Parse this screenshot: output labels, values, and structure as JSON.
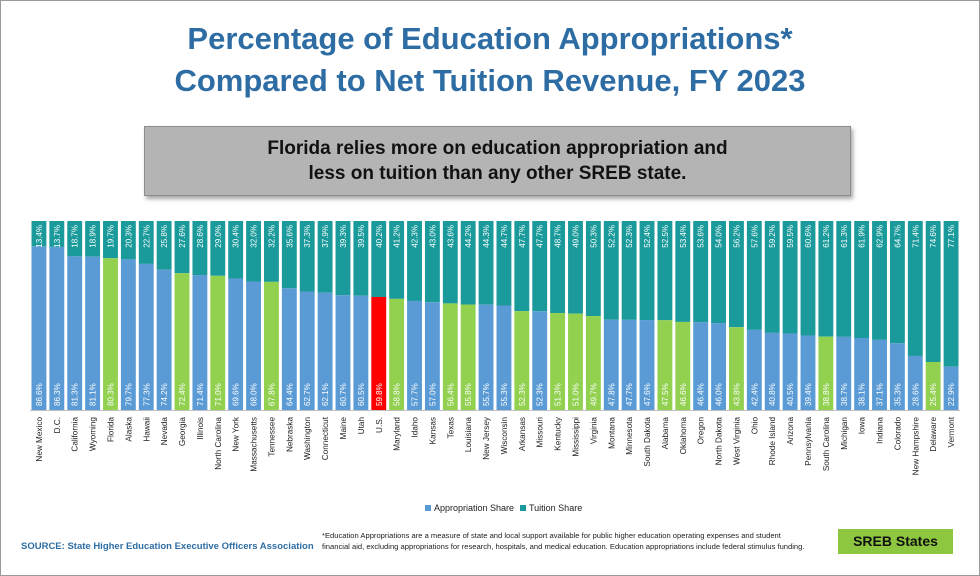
{
  "title_line1": "Percentage of Education Appropriations*",
  "title_line2": "Compared to Net Tuition Revenue, FY 2023",
  "callout_line1": "Florida relies more on education appropriation and",
  "callout_line2": "less on tuition than any other SREB state.",
  "legend": {
    "appropriation": "Appropriation Share",
    "tuition": "Tuition Share"
  },
  "source": "SOURCE: State Higher Education Executive Officers Association",
  "footnote_line1": "*Education Appropriations are a measure of state and local support available for public higher education operating expenses and student",
  "footnote_line2": "financial aid, excluding appropriations for research, hospitals, and medical education. Education appropriations include federal stimulus funding.",
  "sreb_label": "SREB States",
  "colors": {
    "appropriation": "#5b9bd5",
    "tuition": "#1a9a9a",
    "sreb": "#92d050",
    "us": "#ff0000"
  },
  "chart_data": {
    "type": "bar",
    "stacked": true,
    "ylim": [
      0,
      100
    ],
    "categories": [
      "New Mexico",
      "D.C.",
      "California",
      "Wyoming",
      "Florida",
      "Alaska",
      "Hawaii",
      "Nevada",
      "Georgia",
      "Illinois",
      "North Carolina",
      "New York",
      "Massachusetts",
      "Tennessee",
      "Nebraska",
      "Washington",
      "Connecticut",
      "Maine",
      "Utah",
      "U.S.",
      "Maryland",
      "Idaho",
      "Kansas",
      "Texas",
      "Louisiana",
      "New Jersey",
      "Wisconsin",
      "Arkansas",
      "Missouri",
      "Kentucky",
      "Mississippi",
      "Virginia",
      "Montana",
      "Minnesota",
      "South Dakota",
      "Alabama",
      "Oklahoma",
      "Oregon",
      "North Dakota",
      "West Virginia",
      "Ohio",
      "Rhode Island",
      "Arizona",
      "Pennsylvania",
      "South Carolina",
      "Michigan",
      "Iowa",
      "Indiana",
      "Colorado",
      "New Hampshire",
      "Delaware",
      "Vermont"
    ],
    "series": [
      {
        "name": "Appropriation Share",
        "values": [
          86.6,
          86.3,
          81.3,
          81.1,
          80.3,
          79.7,
          77.3,
          74.2,
          72.4,
          71.4,
          71.0,
          69.6,
          68.0,
          67.8,
          64.4,
          62.7,
          62.1,
          60.7,
          60.5,
          59.8,
          58.8,
          57.7,
          57.0,
          56.4,
          55.8,
          55.7,
          55.3,
          52.3,
          52.3,
          51.3,
          51.0,
          49.7,
          47.8,
          47.7,
          47.6,
          47.5,
          46.6,
          46.4,
          46.0,
          43.8,
          42.4,
          40.8,
          40.5,
          39.4,
          38.8,
          38.7,
          38.1,
          37.1,
          35.3,
          28.6,
          25.4,
          22.9
        ],
        "labels": [
          "86.6%",
          "86.3%",
          "81.3%",
          "81.1%",
          "80.3%",
          "79.7%",
          "77.3%",
          "74.2%",
          "72.4%",
          "71.4%",
          "71.0%",
          "69.6%",
          "68.0%",
          "67.8%",
          "64.4%",
          "62.7%",
          "62.1%",
          "60.7%",
          "60.5%",
          "59.8%",
          "58.8%",
          "57.7%",
          "57.0%",
          "56.4%",
          "55.8%",
          "55.7%",
          "55.3%",
          "52.3%",
          "52.3%",
          "51.3%",
          "51.0%",
          "49.7%",
          "47.8%",
          "47.7%",
          "47.6%",
          "47.5%",
          "46.6%",
          "46.4%",
          "46.0%",
          "43.8%",
          "42.4%",
          "40.8%",
          "40.5%",
          "39.4%",
          "38.8%",
          "38.7%",
          "38.1%",
          "37.1%",
          "35.3%",
          "28.6%",
          "25.4%",
          "22.9%"
        ]
      },
      {
        "name": "Tuition Share",
        "values": [
          13.4,
          13.7,
          18.7,
          18.9,
          19.7,
          20.3,
          22.7,
          25.8,
          27.6,
          28.6,
          29.0,
          30.4,
          32.0,
          32.2,
          35.6,
          37.3,
          37.9,
          39.3,
          39.5,
          40.2,
          41.2,
          42.3,
          43.0,
          43.6,
          44.2,
          44.3,
          44.7,
          47.7,
          47.7,
          48.7,
          49.0,
          50.3,
          52.2,
          52.3,
          52.4,
          52.5,
          53.4,
          53.6,
          54.0,
          56.2,
          57.6,
          59.2,
          59.5,
          60.6,
          61.2,
          61.3,
          61.9,
          62.9,
          64.7,
          71.4,
          74.6,
          77.1
        ],
        "labels": [
          "13.4%",
          "13.7%",
          "18.7%",
          "18.9%",
          "19.7%",
          "20.3%",
          "22.7%",
          "25.8%",
          "27.6%",
          "28.6%",
          "29.0%",
          "30.4%",
          "32.0%",
          "32.2%",
          "35.6%",
          "37.3%",
          "37.9%",
          "39.3%",
          "39.5%",
          "40.2%",
          "41.2%",
          "42.3%",
          "43.0%",
          "43.6%",
          "44.2%",
          "44.3%",
          "44.7%",
          "47.7%",
          "47.7%",
          "48.7%",
          "49.0%",
          "50.3%",
          "52.2%",
          "52.3%",
          "52.4%",
          "52.5%",
          "53.4%",
          "53.6%",
          "54.0%",
          "56.2%",
          "57.6%",
          "59.2%",
          "59.5%",
          "60.6%",
          "61.2%",
          "61.3%",
          "61.9%",
          "62.9%",
          "64.7%",
          "71.4%",
          "74.6%",
          "77.1%"
        ]
      }
    ],
    "highlight_sreb": [
      "Florida",
      "Georgia",
      "North Carolina",
      "Tennessee",
      "Maryland",
      "Texas",
      "Louisiana",
      "Arkansas",
      "Kentucky",
      "Mississippi",
      "Virginia",
      "Alabama",
      "Oklahoma",
      "West Virginia",
      "South Carolina",
      "Delaware"
    ],
    "highlight_us": "U.S."
  }
}
